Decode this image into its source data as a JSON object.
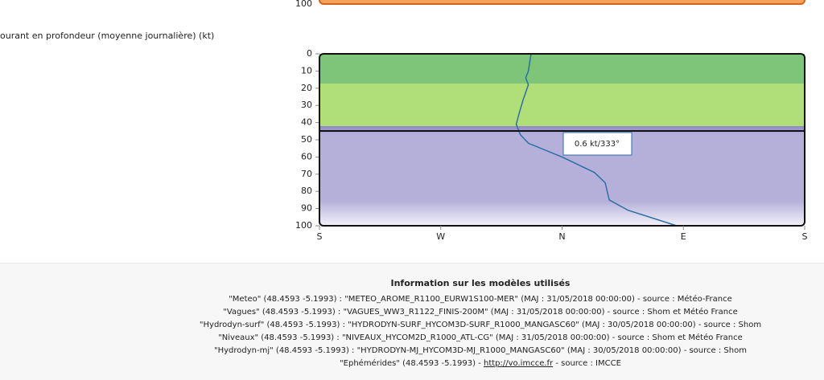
{
  "top_chart": {
    "ytick": "100"
  },
  "chart_data": {
    "type": "line",
    "title": "ourant en profondeur (moyenne journalière) (kt)",
    "x": [
      337,
      335,
      333,
      335,
      331,
      328,
      326,
      329,
      335,
      360,
      384,
      392,
      395,
      409,
      445
    ],
    "series": [
      {
        "color": "#2e6ea6",
        "values": [
          0,
          10,
          14,
          18,
          27,
          35,
          41,
          47,
          52,
          60,
          69,
          75,
          85,
          91,
          100
        ]
      }
    ],
    "xlim": [
      180,
      540
    ],
    "xticks": [
      {
        "value": 180,
        "label": "S"
      },
      {
        "value": 270,
        "label": "W"
      },
      {
        "value": 360,
        "label": "N"
      },
      {
        "value": 450,
        "label": "E"
      },
      {
        "value": 540,
        "label": "S"
      }
    ],
    "ylim": [
      0,
      100
    ],
    "y_inverted": true,
    "yticks": [
      0,
      10,
      20,
      30,
      40,
      50,
      60,
      70,
      80,
      90,
      100
    ],
    "tooltip": "0.6 kt/333°"
  },
  "footer": {
    "title": "Information sur les modèles utilisés",
    "lines": [
      "\"Meteo\" (48.4593 -5.1993) : \"METEO_AROME_R1100_EURW1S100-MER\" (MAJ : 31/05/2018 00:00:00) - source : Météo-France",
      "\"Vagues\" (48.4593 -5.1993) : \"VAGUES_WW3_R1122_FINIS-200M\" (MAJ : 31/05/2018 00:00:00) - source : Shom et Météo France",
      "\"Hydrodyn-surf\" (48.4593 -5.1993) : \"HYDRODYN-SURF_HYCOM3D-SURF_R1000_MANGASC60\" (MAJ : 30/05/2018 00:00:00) - source : Shom",
      "\"Niveaux\" (48.4593 -5.1993) : \"NIVEAUX_HYCOM2D_R1000_ATL-CG\" (MAJ : 31/05/2018 00:00:00) - source : Shom et Météo France",
      "\"Hydrodyn-mj\" (48.4593 -5.1993) : \"HYDRODYN-MJ_HYCOM3D-MJ_R1000_MANGASC60\" (MAJ : 30/05/2018 00:00:00) - source : Shom"
    ],
    "last_line": {
      "before": "\"Ephémérides\" (48.4593 -5.1993) - ",
      "link": "http://vo.imcce.fr",
      "after": " - source : IMCCE"
    }
  }
}
